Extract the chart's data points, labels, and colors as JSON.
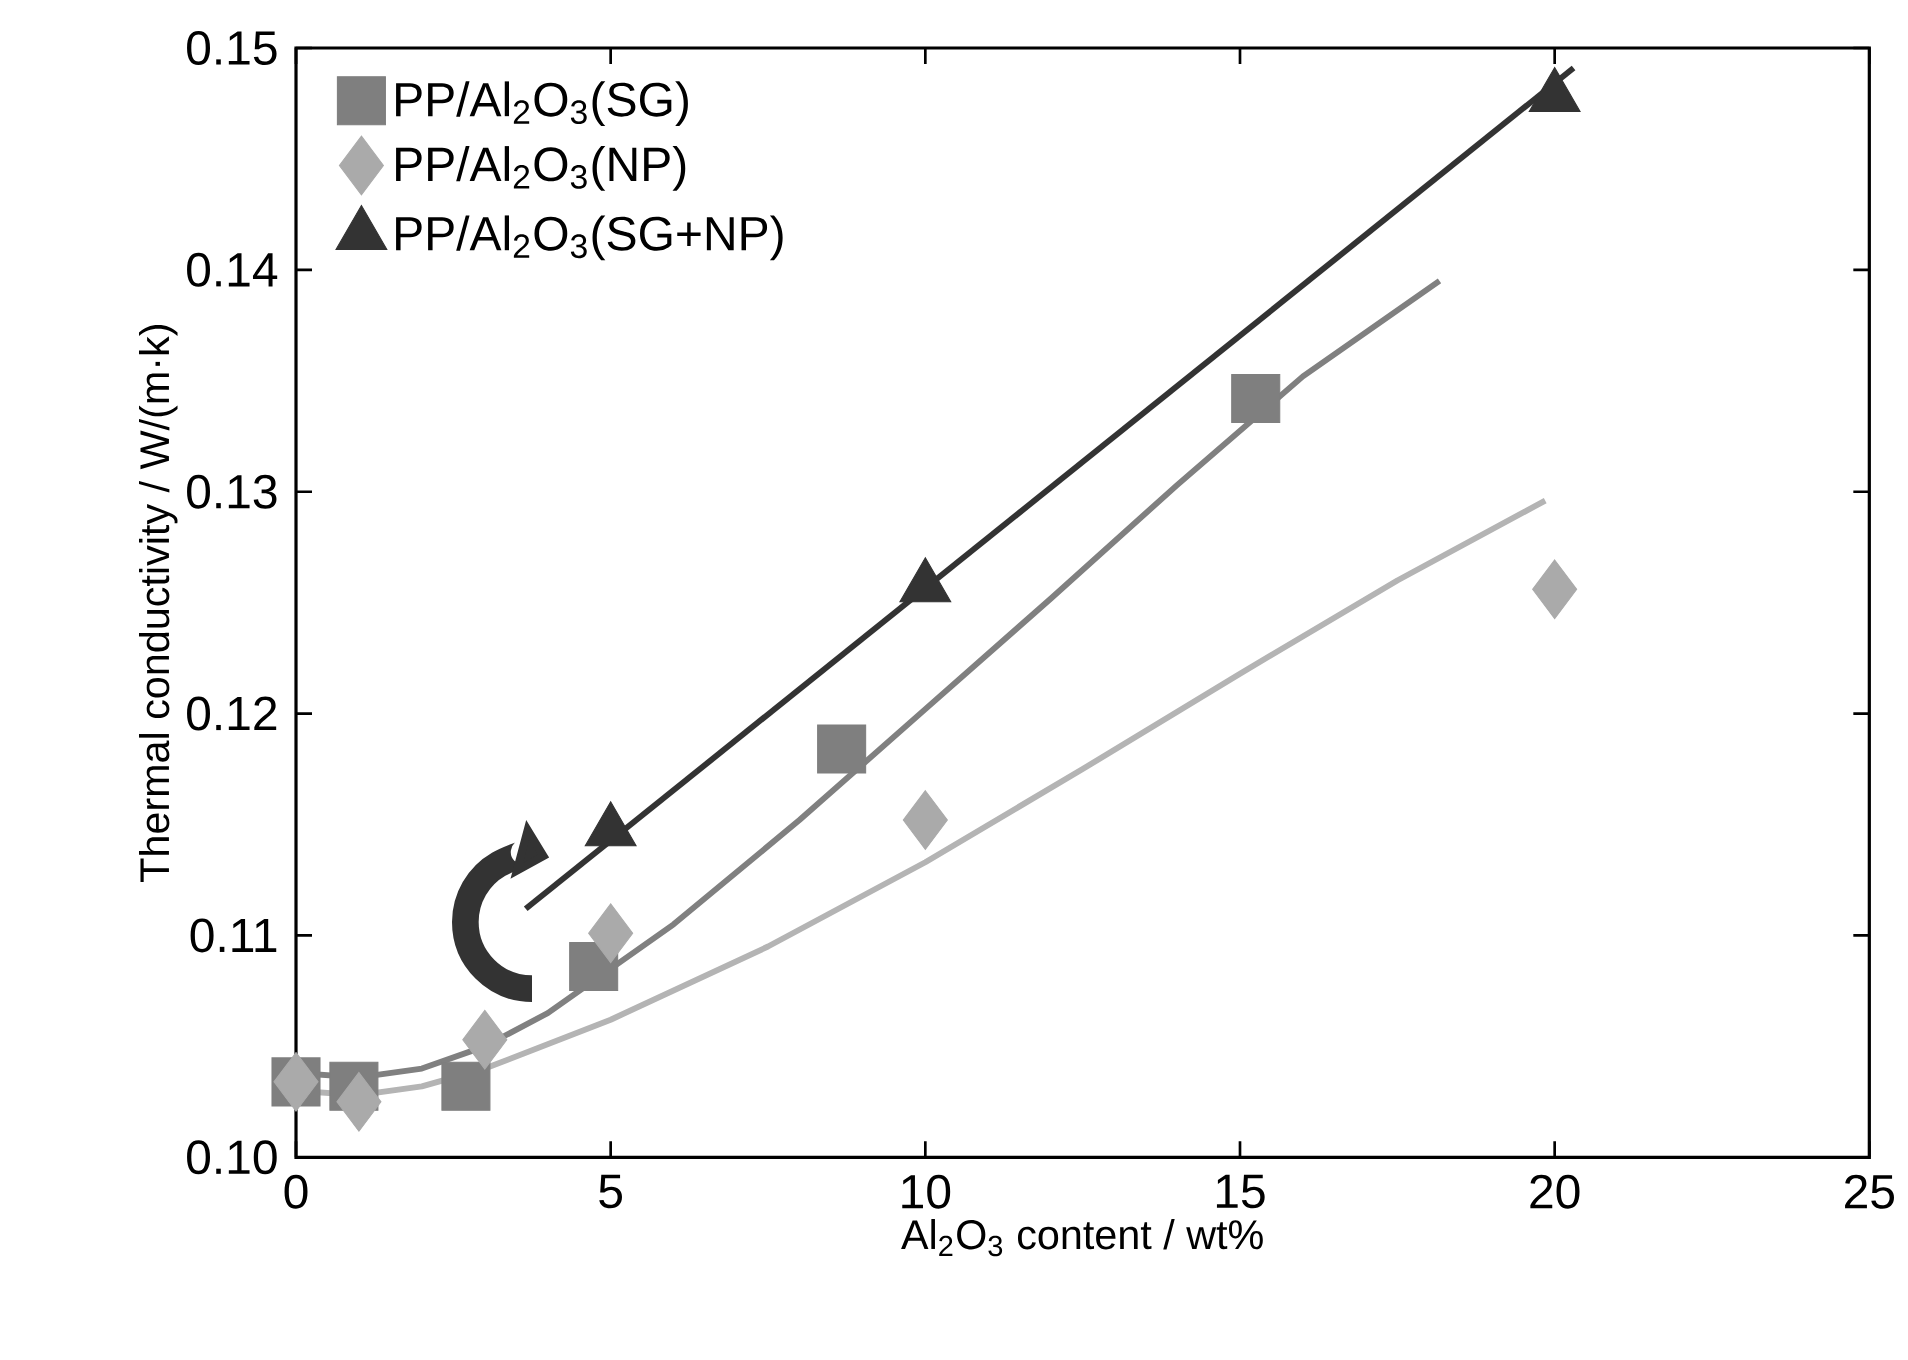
{
  "chart_data": {
    "type": "scatter",
    "xlabel": "Al$_{2}$O$_{3}$ content / wt%",
    "ylabel": "Thermal conductivity / W/(m·k)",
    "xlim": [
      0,
      25
    ],
    "ylim": [
      0.1,
      0.15
    ],
    "xticks": [
      0,
      5,
      10,
      15,
      20,
      25
    ],
    "yticks": [
      {
        "value": 0.1,
        "label": "0.10"
      },
      0.11,
      0.12,
      0.13,
      0.14,
      0.15
    ],
    "legend": "top left",
    "series": [
      {
        "name": "PP/Al$_{2}$O$_{3}$(SG)",
        "marker": "square",
        "color": "#7f7f7f",
        "x": [
          0,
          0.92,
          2.7,
          4.73,
          8.67,
          15.25
        ],
        "values": [
          0.1034,
          0.1032,
          0.1032,
          0.1086,
          0.1184,
          0.1342
        ]
      },
      {
        "name": "PP/Al$_{2}$O$_{3}$(NP)",
        "marker": "diamond",
        "color": "#aaaaaa",
        "x": [
          0,
          1,
          3,
          5,
          10,
          20
        ],
        "values": [
          0.1034,
          0.1025,
          0.1053,
          0.1101,
          0.1152,
          0.1256
        ]
      },
      {
        "name": "PP/Al$_{2}$O$_{3}$(SG+NP)",
        "marker": "triangle",
        "color": "#333333",
        "x": [
          5,
          10,
          20
        ],
        "values": [
          0.1147,
          0.1257,
          0.1478
        ]
      },
      {
        "type": "line",
        "color": "#808080",
        "x": [
          0,
          1,
          2,
          3,
          4,
          5,
          6,
          8,
          10,
          12,
          14,
          16,
          18.17
        ],
        "values": [
          0.1038,
          0.1036,
          0.104,
          0.105,
          0.1065,
          0.1085,
          0.1105,
          0.1152,
          0.1202,
          0.1252,
          0.1303,
          0.1352,
          0.1395
        ]
      },
      {
        "type": "line",
        "color": "#b4b4b4",
        "x": [
          0,
          1,
          2,
          3,
          5,
          7.5,
          10,
          12.5,
          15,
          17.5,
          19.85
        ],
        "values": [
          0.103,
          0.1028,
          0.1032,
          0.104,
          0.1062,
          0.1095,
          0.1133,
          0.1175,
          0.1218,
          0.126,
          0.1296
        ]
      },
      {
        "type": "line",
        "color": "#333333",
        "x": [
          3.65,
          20.3
        ],
        "values": [
          0.1112,
          0.1491
        ]
      }
    ]
  }
}
